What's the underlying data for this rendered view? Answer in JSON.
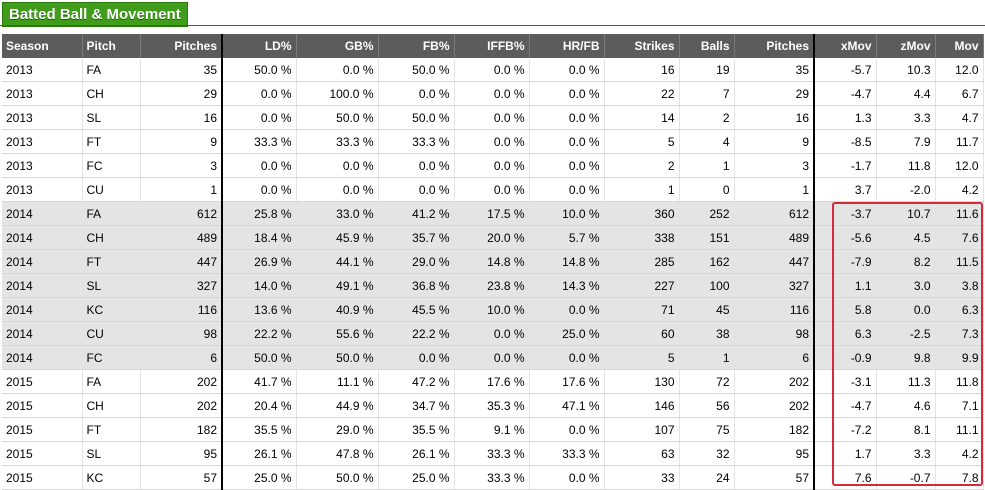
{
  "section": {
    "title": "Batted Ball & Movement"
  },
  "columns": [
    "Season",
    "Pitch",
    "Pitches",
    "LD%",
    "GB%",
    "FB%",
    "IFFB%",
    "HR/FB",
    "Strikes",
    "Balls",
    "Pitches",
    "xMov",
    "zMov",
    "Mov"
  ],
  "rows": [
    [
      "2013",
      "FA",
      "35",
      "50.0 %",
      "0.0 %",
      "50.0 %",
      "0.0 %",
      "0.0 %",
      "16",
      "19",
      "35",
      "-5.7",
      "10.3",
      "12.0"
    ],
    [
      "2013",
      "CH",
      "29",
      "0.0 %",
      "100.0 %",
      "0.0 %",
      "0.0 %",
      "0.0 %",
      "22",
      "7",
      "29",
      "-4.7",
      "4.4",
      "6.7"
    ],
    [
      "2013",
      "SL",
      "16",
      "0.0 %",
      "50.0 %",
      "50.0 %",
      "0.0 %",
      "0.0 %",
      "14",
      "2",
      "16",
      "1.3",
      "3.3",
      "4.7"
    ],
    [
      "2013",
      "FT",
      "9",
      "33.3 %",
      "33.3 %",
      "33.3 %",
      "0.0 %",
      "0.0 %",
      "5",
      "4",
      "9",
      "-8.5",
      "7.9",
      "11.7"
    ],
    [
      "2013",
      "FC",
      "3",
      "0.0 %",
      "0.0 %",
      "0.0 %",
      "0.0 %",
      "0.0 %",
      "2",
      "1",
      "3",
      "-1.7",
      "11.8",
      "12.0"
    ],
    [
      "2013",
      "CU",
      "1",
      "0.0 %",
      "0.0 %",
      "0.0 %",
      "0.0 %",
      "0.0 %",
      "1",
      "0",
      "1",
      "3.7",
      "-2.0",
      "4.2"
    ],
    [
      "2014",
      "FA",
      "612",
      "25.8 %",
      "33.0 %",
      "41.2 %",
      "17.5 %",
      "10.0 %",
      "360",
      "252",
      "612",
      "-3.7",
      "10.7",
      "11.6"
    ],
    [
      "2014",
      "CH",
      "489",
      "18.4 %",
      "45.9 %",
      "35.7 %",
      "20.0 %",
      "5.7 %",
      "338",
      "151",
      "489",
      "-5.6",
      "4.5",
      "7.6"
    ],
    [
      "2014",
      "FT",
      "447",
      "26.9 %",
      "44.1 %",
      "29.0 %",
      "14.8 %",
      "14.8 %",
      "285",
      "162",
      "447",
      "-7.9",
      "8.2",
      "11.5"
    ],
    [
      "2014",
      "SL",
      "327",
      "14.0 %",
      "49.1 %",
      "36.8 %",
      "23.8 %",
      "14.3 %",
      "227",
      "100",
      "327",
      "1.1",
      "3.0",
      "3.8"
    ],
    [
      "2014",
      "KC",
      "116",
      "13.6 %",
      "40.9 %",
      "45.5 %",
      "10.0 %",
      "0.0 %",
      "71",
      "45",
      "116",
      "5.8",
      "0.0",
      "6.3"
    ],
    [
      "2014",
      "CU",
      "98",
      "22.2 %",
      "55.6 %",
      "22.2 %",
      "0.0 %",
      "25.0 %",
      "60",
      "38",
      "98",
      "6.3",
      "-2.5",
      "7.3"
    ],
    [
      "2014",
      "FC",
      "6",
      "50.0 %",
      "50.0 %",
      "0.0 %",
      "0.0 %",
      "0.0 %",
      "5",
      "1",
      "6",
      "-0.9",
      "9.8",
      "9.9"
    ],
    [
      "2015",
      "FA",
      "202",
      "41.7 %",
      "11.1 %",
      "47.2 %",
      "17.6 %",
      "17.6 %",
      "130",
      "72",
      "202",
      "-3.1",
      "11.3",
      "11.8"
    ],
    [
      "2015",
      "CH",
      "202",
      "20.4 %",
      "44.9 %",
      "34.7 %",
      "35.3 %",
      "47.1 %",
      "146",
      "56",
      "202",
      "-4.7",
      "4.6",
      "7.1"
    ],
    [
      "2015",
      "FT",
      "182",
      "35.5 %",
      "29.0 %",
      "35.5 %",
      "9.1 %",
      "0.0 %",
      "107",
      "75",
      "182",
      "-7.2",
      "8.1",
      "11.1"
    ],
    [
      "2015",
      "SL",
      "95",
      "26.1 %",
      "47.8 %",
      "26.1 %",
      "33.3 %",
      "33.3 %",
      "63",
      "32",
      "95",
      "1.7",
      "3.3",
      "4.2"
    ],
    [
      "2015",
      "KC",
      "57",
      "25.0 %",
      "50.0 %",
      "25.0 %",
      "33.3 %",
      "0.0 %",
      "33",
      "24",
      "57",
      "7.6",
      "-0.7",
      "7.8"
    ]
  ],
  "shaded_season": "2014",
  "colors": {
    "title_green": "#3f9d1b",
    "header_gray": "#5c5c5c",
    "row_shade": "#e4e4e4",
    "highlight_red": "#d42a3c"
  }
}
